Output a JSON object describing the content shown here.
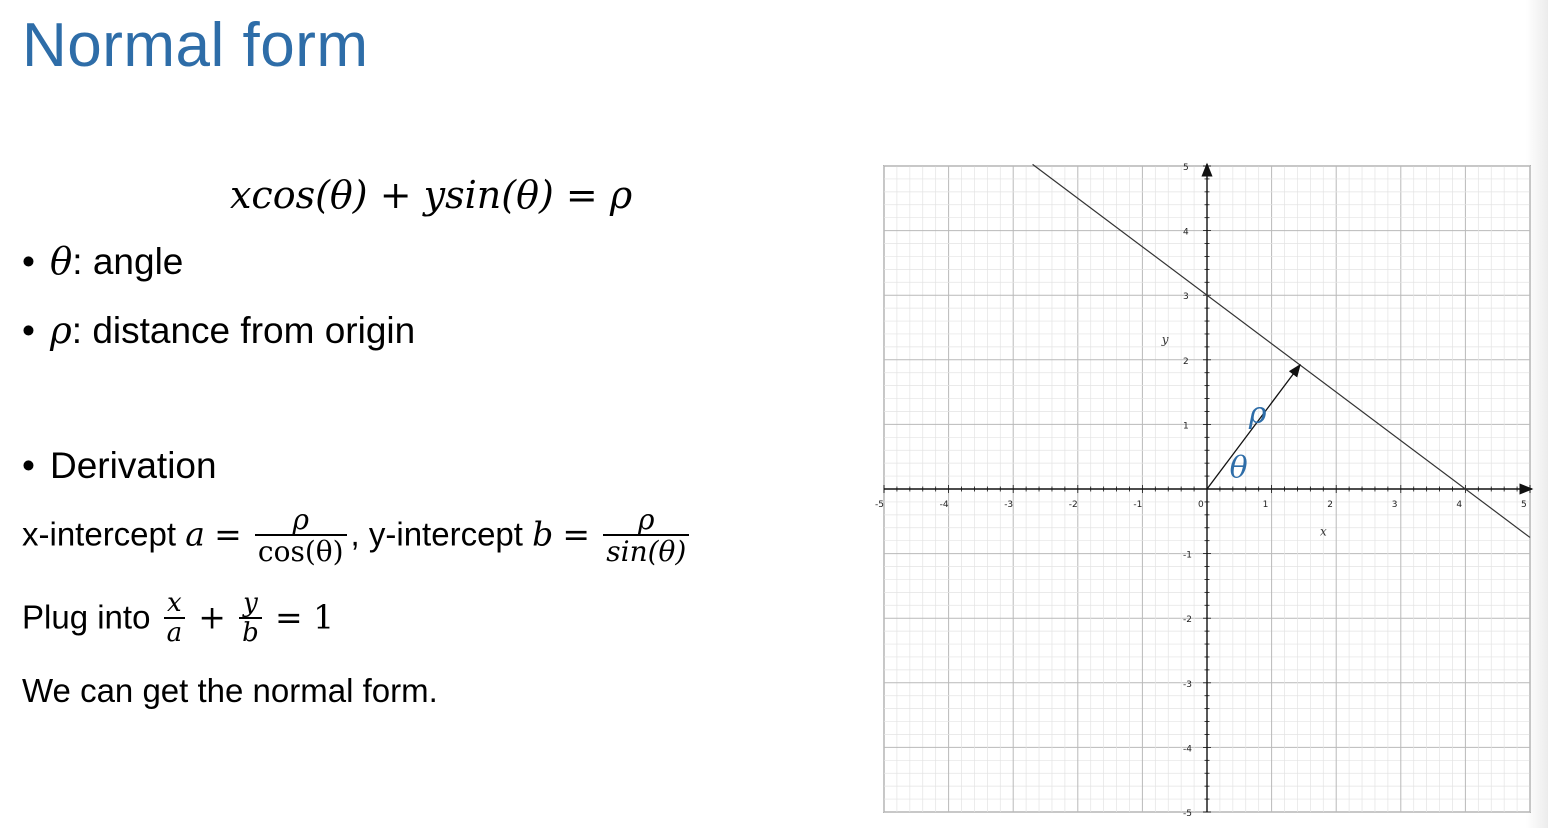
{
  "slide": {
    "title": "Normal form",
    "equation": {
      "lhs1": "xcos(θ)",
      "plus": "+",
      "lhs2": "ysin(θ)",
      "eq": "=",
      "rhs": "ρ"
    },
    "bullets": [
      {
        "symbol": "θ",
        "text": ": angle"
      },
      {
        "symbol": "ρ",
        "text": ": distance from origin"
      }
    ],
    "derivation_bullet": "Derivation",
    "intercepts": {
      "x_label": "x-intercept ",
      "a": "a",
      "eq": "=",
      "a_num": "ρ",
      "a_den": "cos(θ)",
      "sep": ", y-intercept ",
      "b": "b",
      "b_num": "ρ",
      "b_den": "sin(θ)"
    },
    "plug": {
      "text": "Plug into ",
      "f1_num": "x",
      "f1_den": "a",
      "plus": "+",
      "f2_num": "y",
      "f2_den": "b",
      "rhs": "= 1"
    },
    "conclusion": "We can get the normal form."
  },
  "graph": {
    "x_range": [
      -5,
      5
    ],
    "y_range": [
      -5,
      5
    ],
    "x_ticks": [
      "-5",
      "-4",
      "-3",
      "-2",
      "-1",
      "0",
      "1",
      "2",
      "3",
      "4",
      "5"
    ],
    "y_ticks": [
      "5",
      "4",
      "3",
      "2",
      "1",
      "-1",
      "-2",
      "-3",
      "-4",
      "-5"
    ],
    "x_axis_label": "x",
    "y_axis_label": "y",
    "line": {
      "x_intercept": 4,
      "y_intercept": 3
    },
    "normal_foot": [
      1.44,
      1.92
    ],
    "rho_label": "ρ",
    "theta_label": "θ",
    "accent_color": "#2e6da8"
  }
}
